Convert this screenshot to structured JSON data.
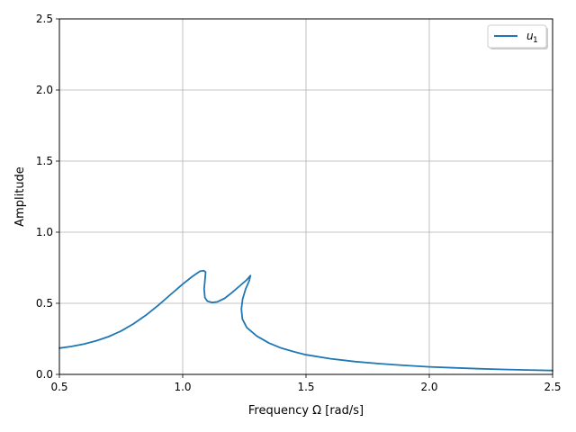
{
  "chart_data": {
    "type": "line",
    "title": "",
    "xlabel": "Frequency Ω [rad/s]",
    "ylabel": "Amplitude",
    "xlim": [
      0.5,
      2.5
    ],
    "ylim": [
      0.0,
      2.5
    ],
    "xticks": [
      0.5,
      1.0,
      1.5,
      2.0,
      2.5
    ],
    "xtick_labels": [
      "0.5",
      "1.0",
      "1.5",
      "2.0",
      "2.5"
    ],
    "yticks": [
      0.0,
      0.5,
      1.0,
      1.5,
      2.0,
      2.5
    ],
    "ytick_labels": [
      "0.0",
      "0.5",
      "1.0",
      "1.5",
      "2.0",
      "2.5"
    ],
    "grid": true,
    "legend_position": "top-right",
    "series": [
      {
        "name": "u",
        "name_subscript": "1",
        "color": "#1f77b4",
        "points": [
          [
            0.5,
            0.185
          ],
          [
            0.55,
            0.197
          ],
          [
            0.6,
            0.214
          ],
          [
            0.65,
            0.237
          ],
          [
            0.7,
            0.266
          ],
          [
            0.75,
            0.305
          ],
          [
            0.8,
            0.355
          ],
          [
            0.85,
            0.415
          ],
          [
            0.9,
            0.485
          ],
          [
            0.95,
            0.56
          ],
          [
            1.0,
            0.635
          ],
          [
            1.04,
            0.69
          ],
          [
            1.07,
            0.725
          ],
          [
            1.085,
            0.73
          ],
          [
            1.093,
            0.72
          ],
          [
            1.09,
            0.66
          ],
          [
            1.087,
            0.6
          ],
          [
            1.09,
            0.54
          ],
          [
            1.1,
            0.515
          ],
          [
            1.12,
            0.505
          ],
          [
            1.14,
            0.51
          ],
          [
            1.17,
            0.535
          ],
          [
            1.2,
            0.575
          ],
          [
            1.23,
            0.62
          ],
          [
            1.26,
            0.665
          ],
          [
            1.275,
            0.695
          ],
          [
            1.27,
            0.66
          ],
          [
            1.255,
            0.6
          ],
          [
            1.243,
            0.53
          ],
          [
            1.238,
            0.46
          ],
          [
            1.242,
            0.39
          ],
          [
            1.26,
            0.33
          ],
          [
            1.3,
            0.27
          ],
          [
            1.35,
            0.22
          ],
          [
            1.4,
            0.185
          ],
          [
            1.45,
            0.16
          ],
          [
            1.5,
            0.138
          ],
          [
            1.6,
            0.11
          ],
          [
            1.7,
            0.09
          ],
          [
            1.8,
            0.075
          ],
          [
            1.9,
            0.063
          ],
          [
            2.0,
            0.053
          ],
          [
            2.1,
            0.046
          ],
          [
            2.2,
            0.04
          ],
          [
            2.3,
            0.035
          ],
          [
            2.4,
            0.031
          ],
          [
            2.5,
            0.027
          ]
        ]
      }
    ]
  }
}
